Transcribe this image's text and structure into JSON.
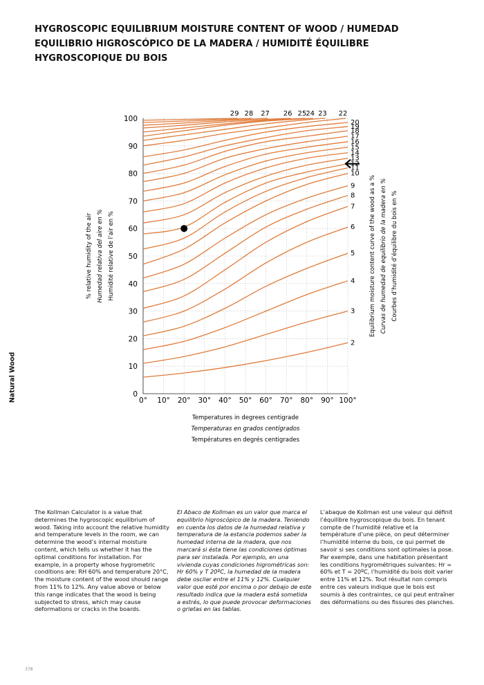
{
  "title": "Hygroscopic equilibrium moisture content of wood / Humedad equilibrio higroscópico de la madera / Humidité équilibre hygroscopique du bois",
  "side_tab": "Natural Wood",
  "chart_data": {
    "type": "line",
    "ylabel": [
      "% relative humidity of the air",
      "Humedad relativa del aire en %",
      "Humidité relative de l’air en %"
    ],
    "y2label": [
      "Equilibrium moisture content curve of the wood as a %",
      "Curvas de humedad de equilibrio de la madera en %",
      "Courbes d’humidité d’équilibre du bois en %"
    ],
    "xlabel": [
      "Temperatures in degrees centigrade",
      "Temperaturas en grados centígrados",
      "Températures en degrés centigrades"
    ],
    "xlim": [
      0,
      100
    ],
    "xticks": [
      {
        "value": 0,
        "label": "0°"
      },
      {
        "value": 10,
        "label": "10°"
      },
      {
        "value": 20,
        "label": "20°"
      },
      {
        "value": 30,
        "label": "30°"
      },
      {
        "value": 40,
        "label": "40°"
      },
      {
        "value": 50,
        "label": "50°"
      },
      {
        "value": 60,
        "label": "60°"
      },
      {
        "value": 70,
        "label": "70°"
      },
      {
        "value": 80,
        "label": "80°"
      },
      {
        "value": 90,
        "label": "90°"
      },
      {
        "value": 100,
        "label": "100°"
      }
    ],
    "ylim": [
      0,
      100
    ],
    "yticks": [
      0,
      10,
      20,
      30,
      40,
      50,
      60,
      70,
      80,
      90,
      100
    ],
    "grid": true,
    "color": "#e07b39",
    "x": [
      0,
      20,
      40,
      60,
      80,
      100
    ],
    "series": [
      {
        "name": "2",
        "values": [
          6,
          7.5,
          9.5,
          12,
          15,
          18.5
        ]
      },
      {
        "name": "3",
        "values": [
          11,
          13.5,
          17,
          21.5,
          26,
          30
        ]
      },
      {
        "name": "4",
        "values": [
          16,
          19,
          24,
          30,
          36,
          41
        ]
      },
      {
        "name": "5",
        "values": [
          21,
          24.5,
          31,
          39,
          45.5,
          51
        ]
      },
      {
        "name": "6",
        "values": [
          26,
          30,
          38,
          47.5,
          55,
          60.5
        ]
      },
      {
        "name": "7",
        "values": [
          31,
          35.5,
          45,
          55,
          62.5,
          68
        ]
      },
      {
        "name": "8",
        "values": [
          37,
          41.5,
          51,
          60.5,
          67,
          72
        ]
      },
      {
        "name": "9",
        "values": [
          42,
          47,
          56.5,
          65,
          71,
          75.5
        ]
      },
      {
        "name": "10",
        "values": [
          47,
          52.5,
          62,
          70,
          76,
          80
        ]
      },
      {
        "name": "11",
        "values": [
          52.5,
          56.5,
          66,
          73.5,
          78.5,
          82
        ]
      },
      {
        "name": "12",
        "values": [
          58,
          60.5,
          69.5,
          76.5,
          80.5,
          83.5
        ]
      },
      {
        "name": "13",
        "values": [
          62,
          65,
          73,
          79,
          83,
          85.5
        ]
      },
      {
        "name": "14",
        "values": [
          66,
          69,
          76.5,
          82,
          85.5,
          87.5
        ]
      },
      {
        "name": "15",
        "values": [
          70,
          73,
          79.5,
          84.5,
          87.5,
          89.5
        ]
      },
      {
        "name": "16",
        "values": [
          73.5,
          76.5,
          82.5,
          87,
          89.5,
          91.5
        ]
      },
      {
        "name": "17",
        "values": [
          77,
          80,
          85.5,
          89,
          91.5,
          93.5
        ]
      },
      {
        "name": "18",
        "values": [
          80,
          83,
          88,
          91.5,
          93.5,
          95.5
        ]
      },
      {
        "name": "19",
        "values": [
          83,
          86,
          90,
          93,
          95.5,
          97
        ]
      },
      {
        "name": "20",
        "values": [
          86,
          88.5,
          92,
          95,
          97,
          98.5
        ]
      },
      {
        "name": "22",
        "x": [
          0,
          20,
          40,
          60,
          80,
          99
        ],
        "values": [
          90,
          92,
          94.5,
          96.5,
          98.5,
          100
        ]
      },
      {
        "name": "23",
        "x": [
          0,
          20,
          40,
          60,
          80,
          89
        ],
        "values": [
          92,
          94,
          96,
          98,
          99.5,
          100
        ]
      },
      {
        "name": "24",
        "x": [
          0,
          20,
          40,
          60,
          83
        ],
        "values": [
          93.5,
          95.5,
          97.5,
          99,
          100
        ]
      },
      {
        "name": "25",
        "x": [
          0,
          20,
          40,
          60,
          79
        ],
        "values": [
          95,
          96.5,
          98,
          99.3,
          100
        ]
      },
      {
        "name": "26",
        "x": [
          0,
          20,
          40,
          60,
          72
        ],
        "values": [
          96.5,
          97.5,
          98.7,
          99.6,
          100
        ]
      },
      {
        "name": "27",
        "x": [
          0,
          20,
          40,
          61
        ],
        "values": [
          97.5,
          98.3,
          99.2,
          100
        ]
      },
      {
        "name": "28",
        "x": [
          0,
          20,
          40,
          53
        ],
        "values": [
          98.5,
          99,
          99.6,
          100
        ]
      },
      {
        "name": "29",
        "x": [
          0,
          20,
          46
        ],
        "values": [
          99.3,
          99.6,
          100
        ]
      }
    ],
    "point": {
      "x": 20,
      "y": 60
    },
    "arrow": {
      "y": 83.5
    }
  },
  "paragraphs": [
    "The Kollman Calculator is a value that determines the hygroscopic equilibrium of wood. Taking into account the relative humidity and temperature levels in the room, we can determine the wood’s internal moisture content, which tells us whether it has the optimal conditions for installation. For example, in a property whose hygrometric conditions are: RH 60% and temperature 20°C, the moisture content of the wood should range from 11% to 12%. Any value above or below this range indicates that the wood is being subjected to stress, which may cause deformations or cracks in the boards.",
    "El Abaco de Kollman es un valor que marca el equilibrio higroscópico de la madera. Teniendo en cuenta los datos de la humedad relativa y temperatura de la estancia podemos saber la humedad interna de la madera, que nos marcará si ésta tiene las condiciones óptimas para ser instalada. Por ejemplo, en una vivienda cuyas condiciones higrométricas son: Hr 60% y T 20ºC, la humedad de la madera debe oscilar entre el 11% y 12%. Cualquier valor que esté por encima o por debajo de este resultado indica que la madera está sometida a estrés, lo que puede provocar deformaciones o grietas en las tablas.",
    "L’abaque de Kollman est une valeur qui définit l’équilibre hygroscopique du bois. En tenant compte de l’humidité relative et la température d’une pièce, on peut déterminer l’humidité interne du bois, ce qui permet de savoir si ses conditions sont optimales la pose. Par exemple, dans une habitation présentant les conditions hygrométriques suivantes: Hr = 60% et T = 20ºC, l’humidité du bois doit varier entre 11% et 12%. Tout résultat non compris entre ces valeurs indique que le bois est soumis à des contraintes, ce qui peut entraîner des déformations ou des fissures des planches."
  ],
  "page_number": "378"
}
